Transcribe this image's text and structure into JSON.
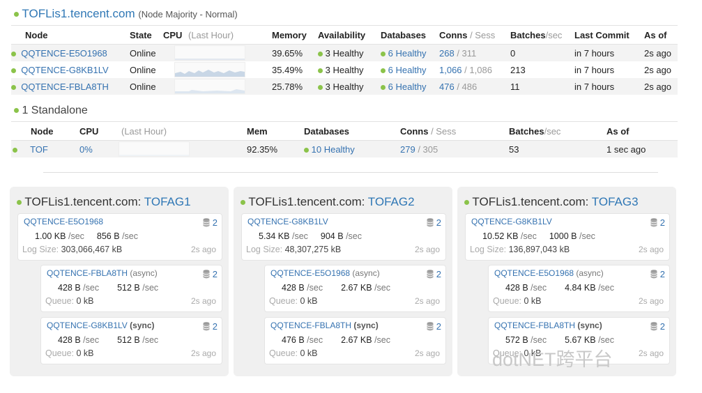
{
  "cluster": {
    "name": "TOFLis1.tencent.com",
    "mode": "(Node Majority - Normal)",
    "headers": {
      "node": "Node",
      "state": "State",
      "cpu": "CPU",
      "cpu_hint": "(Last Hour)",
      "memory": "Memory",
      "availability": "Availability",
      "databases": "Databases",
      "conns": "Conns",
      "sess": "/ Sess",
      "batches": "Batches",
      "per_sec": "/sec",
      "last_commit": "Last Commit",
      "as_of": "As of"
    },
    "rows": [
      {
        "node": "QQTENCE-E5O1968",
        "state": "Online",
        "memory": "39.65%",
        "availability": "3 Healthy",
        "databases": "6 Healthy",
        "conns": "268",
        "sess": "/ 311",
        "batches": "0",
        "last_commit": "in 7 hours",
        "as_of": "2s ago"
      },
      {
        "node": "QQTENCE-G8KB1LV",
        "state": "Online",
        "memory": "35.49%",
        "availability": "3 Healthy",
        "databases": "6 Healthy",
        "conns": "1,066",
        "sess": "/ 1,086",
        "batches": "213",
        "last_commit": "in 7 hours",
        "as_of": "2s ago"
      },
      {
        "node": "QQTENCE-FBLA8TH",
        "state": "Online",
        "memory": "25.78%",
        "availability": "3 Healthy",
        "databases": "6 Healthy",
        "conns": "476",
        "sess": "/ 486",
        "batches": "11",
        "last_commit": "in 7 hours",
        "as_of": "2s ago"
      }
    ]
  },
  "standalone": {
    "title": "1 Standalone",
    "headers": {
      "node": "Node",
      "cpu": "CPU",
      "cpu_hint": "(Last Hour)",
      "mem": "Mem",
      "databases": "Databases",
      "conns": "Conns",
      "sess": "/ Sess",
      "batches": "Batches",
      "per_sec": "/sec",
      "as_of": "As of"
    },
    "row": {
      "node": "TOF",
      "cpu": "0%",
      "mem": "92.35%",
      "databases": "10 Healthy",
      "conns": "279",
      "sess": "/ 305",
      "batches": "53",
      "as_of": "1 sec ago"
    }
  },
  "groups": [
    {
      "prefix": "TOFLis1.tencent.com:",
      "name": "TOFAG1",
      "primary": {
        "node": "QQTENCE-E5O1968",
        "db_count": "2",
        "in": "1.00 KB",
        "out": "856 B",
        "unit": "/sec",
        "log_label": "Log Size:",
        "log_value": "303,066,467 kB",
        "ago": "2s ago"
      },
      "replicas": [
        {
          "node": "QQTENCE-FBLA8TH",
          "mode": "(async)",
          "db_count": "2",
          "in": "428 B",
          "out": "512 B",
          "unit": "/sec",
          "queue_label": "Queue:",
          "queue_value": "0 kB",
          "ago": "2s ago"
        },
        {
          "node": "QQTENCE-G8KB1LV",
          "mode": "(sync)",
          "db_count": "2",
          "in": "428 B",
          "out": "512 B",
          "unit": "/sec",
          "queue_label": "Queue:",
          "queue_value": "0 kB",
          "ago": "2s ago"
        }
      ]
    },
    {
      "prefix": "TOFLis1.tencent.com:",
      "name": "TOFAG2",
      "primary": {
        "node": "QQTENCE-G8KB1LV",
        "db_count": "2",
        "in": "5.34 KB",
        "out": "904 B",
        "unit": "/sec",
        "log_label": "Log Size:",
        "log_value": "48,307,275 kB",
        "ago": "2s ago"
      },
      "replicas": [
        {
          "node": "QQTENCE-E5O1968",
          "mode": "(async)",
          "db_count": "2",
          "in": "428 B",
          "out": "2.67 KB",
          "unit": "/sec",
          "queue_label": "Queue:",
          "queue_value": "0 kB",
          "ago": "2s ago"
        },
        {
          "node": "QQTENCE-FBLA8TH",
          "mode": "(sync)",
          "db_count": "2",
          "in": "476 B",
          "out": "2.67 KB",
          "unit": "/sec",
          "queue_label": "Queue:",
          "queue_value": "0 kB",
          "ago": "2s ago"
        }
      ]
    },
    {
      "prefix": "TOFLis1.tencent.com:",
      "name": "TOFAG3",
      "primary": {
        "node": "QQTENCE-G8KB1LV",
        "db_count": "2",
        "in": "10.52 KB",
        "out": "1000 B",
        "unit": "/sec",
        "log_label": "Log Size:",
        "log_value": "136,897,043 kB",
        "ago": "2s ago"
      },
      "replicas": [
        {
          "node": "QQTENCE-E5O1968",
          "mode": "(async)",
          "db_count": "2",
          "in": "428 B",
          "out": "4.84 KB",
          "unit": "/sec",
          "queue_label": "Queue:",
          "queue_value": "0 kB",
          "ago": "2s ago"
        },
        {
          "node": "QQTENCE-FBLA8TH",
          "mode": "(sync)",
          "db_count": "2",
          "in": "572 B",
          "out": "5.67 KB",
          "unit": "/sec",
          "queue_label": "Queue:",
          "queue_value": "0 kB",
          "ago": "2s ago"
        }
      ]
    }
  ],
  "watermark": "dotNET跨平台",
  "icons": {
    "status": "green-status-dot-icon",
    "database": "database-icon"
  },
  "colors": {
    "accent": "#3572b0",
    "healthy": "#8bc34a",
    "panel": "#f0f0f0"
  }
}
